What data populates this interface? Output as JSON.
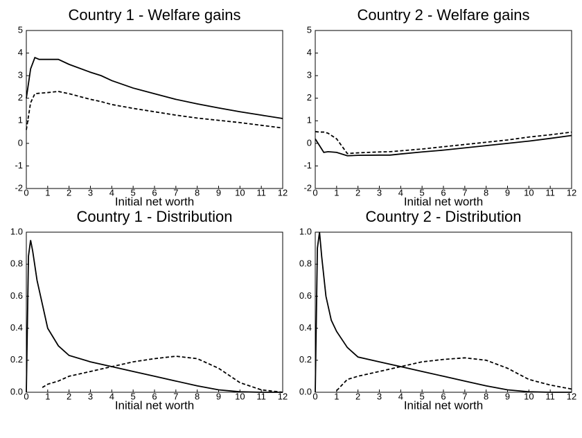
{
  "chart_data": [
    {
      "type": "line",
      "title": "Country 1 - Welfare gains",
      "x_label": "Initial net worth",
      "x": [
        0,
        0.2,
        0.4,
        0.6,
        1,
        1.5,
        2,
        3,
        3.5,
        4,
        5,
        6,
        7,
        8,
        9,
        10,
        11,
        12
      ],
      "series": [
        {
          "color": "#000000",
          "style": "solid",
          "values": [
            2.0,
            3.3,
            3.8,
            3.72,
            3.72,
            3.72,
            3.5,
            3.15,
            3.0,
            2.78,
            2.45,
            2.2,
            1.95,
            1.75,
            1.57,
            1.4,
            1.25,
            1.1
          ]
        },
        {
          "color": "#000000",
          "style": "dashed",
          "values": [
            0.6,
            1.8,
            2.2,
            2.22,
            2.25,
            2.3,
            2.2,
            1.95,
            1.85,
            1.72,
            1.55,
            1.4,
            1.25,
            1.12,
            1.02,
            0.92,
            0.8,
            0.68
          ]
        }
      ],
      "xlim": [
        0,
        12
      ],
      "xticks": [
        0,
        1,
        2,
        3,
        4,
        5,
        6,
        7,
        8,
        9,
        10,
        11,
        12
      ],
      "ylim": [
        -2,
        5
      ],
      "yticks": [
        -2,
        -1,
        0,
        1,
        2,
        3,
        4,
        5
      ]
    },
    {
      "type": "line",
      "title": "Country 2 - Welfare gains",
      "x_label": "Initial net worth",
      "x": [
        0,
        0.2,
        0.4,
        0.6,
        1,
        1.5,
        2,
        3,
        3.5,
        4,
        5,
        6,
        7,
        8,
        9,
        10,
        11,
        12
      ],
      "series": [
        {
          "color": "#000000",
          "style": "solid",
          "values": [
            0.2,
            -0.1,
            -0.4,
            -0.37,
            -0.4,
            -0.55,
            -0.53,
            -0.52,
            -0.52,
            -0.47,
            -0.38,
            -0.3,
            -0.2,
            -0.1,
            0.0,
            0.1,
            0.22,
            0.35
          ]
        },
        {
          "color": "#000000",
          "style": "dashed",
          "values": [
            0.52,
            0.5,
            0.5,
            0.45,
            0.2,
            -0.45,
            -0.42,
            -0.38,
            -0.37,
            -0.33,
            -0.25,
            -0.15,
            -0.05,
            0.05,
            0.15,
            0.28,
            0.38,
            0.5
          ]
        }
      ],
      "xlim": [
        0,
        12
      ],
      "xticks": [
        0,
        1,
        2,
        3,
        4,
        5,
        6,
        7,
        8,
        9,
        10,
        11,
        12
      ],
      "ylim": [
        -2,
        5
      ],
      "yticks": [
        -2,
        -1,
        0,
        1,
        2,
        3,
        4,
        5
      ]
    },
    {
      "type": "line",
      "title": "Country 1 - Distribution",
      "x_label": "Initial net worth",
      "x": [
        0,
        0.1,
        0.2,
        0.3,
        0.5,
        0.75,
        1,
        1.5,
        2,
        3,
        4,
        5,
        6,
        7,
        8,
        9,
        10,
        11,
        12
      ],
      "series": [
        {
          "color": "#000000",
          "style": "solid",
          "values": [
            0.0,
            0.85,
            0.95,
            0.88,
            0.7,
            0.55,
            0.4,
            0.29,
            0.23,
            0.19,
            0.16,
            0.13,
            0.1,
            0.07,
            0.04,
            0.015,
            0.003,
            0,
            0
          ]
        },
        {
          "color": "#000000",
          "style": "dashed",
          "values": [
            null,
            null,
            null,
            null,
            null,
            0.03,
            0.05,
            0.07,
            0.1,
            0.13,
            0.16,
            0.19,
            0.21,
            0.225,
            0.21,
            0.15,
            0.06,
            0.015,
            0.0
          ]
        }
      ],
      "xlim": [
        0,
        12
      ],
      "xticks": [
        0,
        1,
        2,
        3,
        4,
        5,
        6,
        7,
        8,
        9,
        10,
        11,
        12
      ],
      "ylim": [
        0,
        1
      ],
      "yticks": [
        {
          "value": 0,
          "label": "0.0"
        },
        0.2,
        0.4,
        0.6,
        0.8,
        {
          "value": 1,
          "label": "1.0"
        }
      ]
    },
    {
      "type": "line",
      "title": "Country 2 - Distribution",
      "x_label": "Initial net worth",
      "x": [
        0,
        0.1,
        0.2,
        0.3,
        0.5,
        0.75,
        1,
        1.5,
        2,
        3,
        4,
        5,
        6,
        7,
        8,
        9,
        10,
        11,
        12
      ],
      "series": [
        {
          "color": "#000000",
          "style": "solid",
          "values": [
            0.0,
            0.9,
            1.0,
            0.85,
            0.6,
            0.45,
            0.38,
            0.28,
            0.22,
            0.19,
            0.16,
            0.13,
            0.1,
            0.07,
            0.04,
            0.015,
            0.003,
            0,
            0
          ]
        },
        {
          "color": "#000000",
          "style": "dashed",
          "values": [
            null,
            null,
            null,
            null,
            null,
            null,
            0.01,
            0.08,
            0.1,
            0.13,
            0.16,
            0.19,
            0.205,
            0.215,
            0.2,
            0.15,
            0.08,
            0.045,
            0.02
          ]
        }
      ],
      "xlim": [
        0,
        12
      ],
      "xticks": [
        0,
        1,
        2,
        3,
        4,
        5,
        6,
        7,
        8,
        9,
        10,
        11,
        12
      ],
      "ylim": [
        0,
        1
      ],
      "yticks": [
        {
          "value": 0,
          "label": "0.0"
        },
        0.2,
        0.4,
        0.6,
        0.8,
        {
          "value": 1,
          "label": "1.0"
        }
      ]
    }
  ]
}
